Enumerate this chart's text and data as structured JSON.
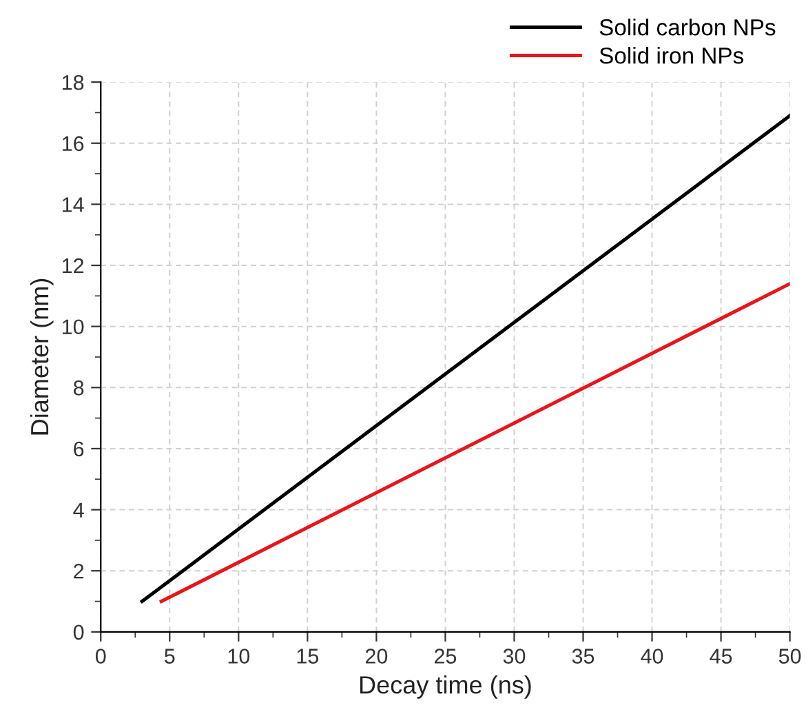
{
  "chart_data": {
    "type": "line",
    "xlabel": "Decay time (ns)",
    "ylabel": "Diameter (nm)",
    "series": [
      {
        "name": "Solid carbon NPs",
        "color": "#000000",
        "x": [
          3,
          50
        ],
        "values": [
          1,
          16.9
        ]
      },
      {
        "name": "Solid iron NPs",
        "color": "#e8151b",
        "x": [
          4.4,
          50
        ],
        "values": [
          1,
          11.4
        ]
      }
    ],
    "xlim": [
      0,
      50
    ],
    "xticks": [
      0,
      5,
      10,
      15,
      20,
      25,
      30,
      35,
      40,
      45,
      50
    ],
    "ylim": [
      0,
      18
    ],
    "yticks": [
      0,
      2,
      4,
      6,
      8,
      10,
      12,
      14,
      16,
      18
    ],
    "grid": true,
    "legend": "top right",
    "marker": "none",
    "line_style": "solid"
  }
}
